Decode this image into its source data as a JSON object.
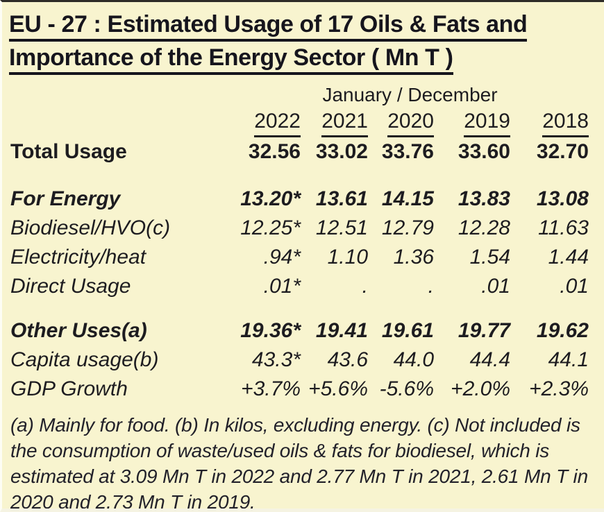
{
  "title": {
    "line1": "EU - 27 : Estimated Usage of 17 Oils & Fats and",
    "line2": "Importance of the Energy Sector ( Mn T )"
  },
  "table": {
    "period_header": "January / December",
    "years": [
      "2022",
      "2021",
      "2020",
      "2019",
      "2018"
    ],
    "rows": [
      {
        "label": "Total Usage",
        "values": [
          "32.56",
          "33.02",
          "33.76",
          "33.60",
          "32.70"
        ]
      },
      {
        "label": "For Energy",
        "values": [
          "13.20*",
          "13.61",
          "14.15",
          "13.83",
          "13.08"
        ]
      },
      {
        "label": "Biodiesel/HVO(c)",
        "values": [
          "12.25*",
          "12.51",
          "12.79",
          "12.28",
          "11.63"
        ]
      },
      {
        "label": "Electricity/heat",
        "values": [
          ".94*",
          "1.10",
          "1.36",
          "1.54",
          "1.44"
        ]
      },
      {
        "label": "Direct Usage",
        "values": [
          ".01*",
          ".",
          ".",
          ".01",
          ".01"
        ]
      },
      {
        "label": "Other Uses(a)",
        "values": [
          "19.36*",
          "19.41",
          "19.61",
          "19.77",
          "19.62"
        ]
      },
      {
        "label": "Capita usage(b)",
        "values": [
          "43.3*",
          "43.6",
          "44.0",
          "44.4",
          "44.1"
        ]
      },
      {
        "label": "GDP Growth",
        "values": [
          "+3.7%",
          "+5.6%",
          "-5.6%",
          "+2.0%",
          "+2.3%"
        ]
      }
    ]
  },
  "footnote": "(a) Mainly for food. (b) In kilos, excluding energy. (c) Not included is the consumption of waste/used oils & fats for biodiesel, which is estimated at 3.09 Mn T in 2022 and 2.77 Mn T in 2021, 2.61 Mn T in 2020 and 2.73 Mn T in 2019.",
  "colors": {
    "background": "#f8f4cf",
    "text": "#1d1c20"
  }
}
